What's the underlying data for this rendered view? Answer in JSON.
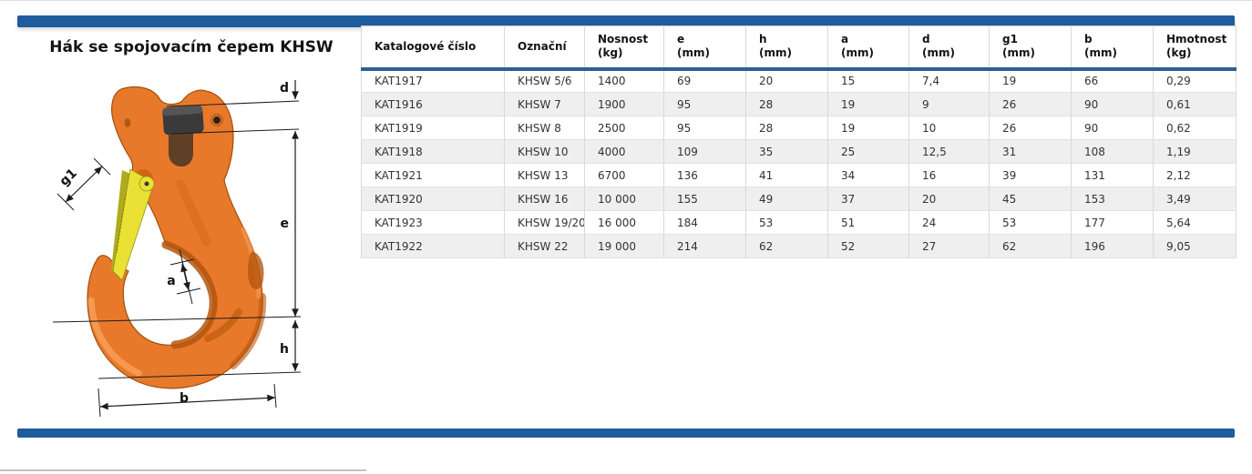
{
  "title": "Hák se spojovacím čepem KHSW",
  "drawing": {
    "dims": {
      "d": "d",
      "g1": "g1",
      "e": "e",
      "a": "a",
      "h": "h",
      "b": "b"
    }
  },
  "table": {
    "columns": [
      {
        "label": "Katalogové číslo",
        "unit": ""
      },
      {
        "label": "Označní",
        "unit": ""
      },
      {
        "label": "Nosnost",
        "unit": "(kg)"
      },
      {
        "label": "e",
        "unit": "(mm)"
      },
      {
        "label": "h",
        "unit": "(mm)"
      },
      {
        "label": "a",
        "unit": "(mm)"
      },
      {
        "label": "d",
        "unit": "(mm)"
      },
      {
        "label": "g1",
        "unit": "(mm)"
      },
      {
        "label": "b",
        "unit": "(mm)"
      },
      {
        "label": "Hmotnost",
        "unit": "(kg)"
      }
    ],
    "rows": [
      [
        "KAT1917",
        "KHSW 5/6",
        "1400",
        "69",
        "20",
        "15",
        "7,4",
        "19",
        "66",
        "0,29"
      ],
      [
        "KAT1916",
        "KHSW 7",
        "1900",
        "95",
        "28",
        "19",
        "9",
        "26",
        "90",
        "0,61"
      ],
      [
        "KAT1919",
        "KHSW 8",
        "2500",
        "95",
        "28",
        "19",
        "10",
        "26",
        "90",
        "0,62"
      ],
      [
        "KAT1918",
        "KHSW 10",
        "4000",
        "109",
        "35",
        "25",
        "12,5",
        "31",
        "108",
        "1,19"
      ],
      [
        "KAT1921",
        "KHSW 13",
        "6700",
        "136",
        "41",
        "34",
        "16",
        "39",
        "131",
        "2,12"
      ],
      [
        "KAT1920",
        "KHSW 16",
        "10 000",
        "155",
        "49",
        "37",
        "20",
        "45",
        "153",
        "3,49"
      ],
      [
        "KAT1923",
        "KHSW 19/20",
        "16 000",
        "184",
        "53",
        "51",
        "24",
        "53",
        "177",
        "5,64"
      ],
      [
        "KAT1922",
        "KHSW 22",
        "19 000",
        "214",
        "62",
        "52",
        "27",
        "62",
        "196",
        "9,05"
      ]
    ]
  },
  "colors": {
    "accent_blue": "#1e5c9e",
    "table_rule_blue": "#2c6190",
    "row_stripe": "#efefef",
    "hook_orange": "#e8792a",
    "hook_orange_dark": "#b5560e",
    "latch_yellow": "#e9e234",
    "pin_dark": "#3a3a3a"
  }
}
